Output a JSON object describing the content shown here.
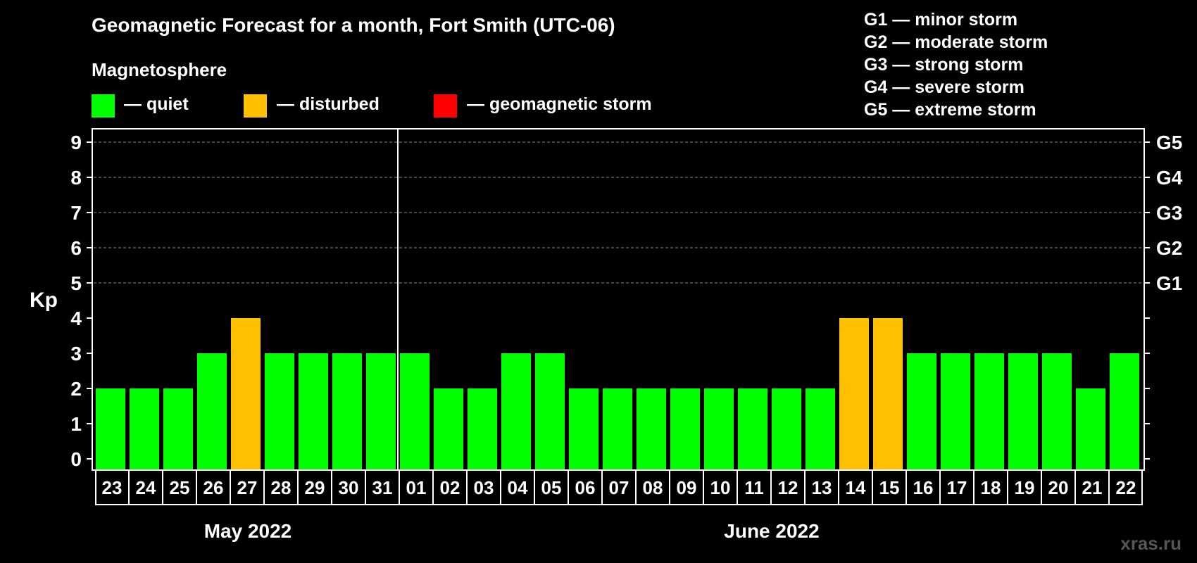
{
  "title": "Geomagnetic Forecast for a month, Fort Smith (UTC-06)",
  "magnetosphere_heading": "Magnetosphere",
  "legend": [
    {
      "label": "— quiet",
      "color": "#00ff00"
    },
    {
      "label": "— disturbed",
      "color": "#ffc000"
    },
    {
      "label": "— geomagnetic storm",
      "color": "#ff0000"
    }
  ],
  "g_scale": [
    "G1 — minor storm",
    "G2 — moderate storm",
    "G3 — strong storm",
    "G4 — severe storm",
    "G5 — extreme storm"
  ],
  "watermark": "xras.ru",
  "chart_data": {
    "type": "bar",
    "ylabel": "Kp",
    "ylim": [
      0,
      9
    ],
    "yticks": [
      0,
      1,
      2,
      3,
      4,
      5,
      6,
      7,
      8,
      9
    ],
    "right_axis_labels": [
      {
        "kp": 5,
        "label": "G1"
      },
      {
        "kp": 6,
        "label": "G2"
      },
      {
        "kp": 7,
        "label": "G3"
      },
      {
        "kp": 8,
        "label": "G4"
      },
      {
        "kp": 9,
        "label": "G5"
      }
    ],
    "grid": "dashed horizontal at Kp 5-9",
    "categories": [
      "23",
      "24",
      "25",
      "26",
      "27",
      "28",
      "29",
      "30",
      "31",
      "01",
      "02",
      "03",
      "04",
      "05",
      "06",
      "07",
      "08",
      "09",
      "10",
      "11",
      "12",
      "13",
      "14",
      "15",
      "16",
      "17",
      "18",
      "19",
      "20",
      "21",
      "22"
    ],
    "values": [
      2,
      2,
      2,
      3,
      4,
      3,
      3,
      3,
      3,
      3,
      2,
      2,
      3,
      3,
      2,
      2,
      2,
      2,
      2,
      2,
      2,
      2,
      4,
      4,
      3,
      3,
      3,
      3,
      3,
      2,
      3
    ],
    "months": [
      {
        "label": "May 2022",
        "start": 0,
        "end": 8
      },
      {
        "label": "June 2022",
        "start": 9,
        "end": 30
      }
    ],
    "colors": {
      "quiet": "#00ff00",
      "disturbed": "#ffc000",
      "storm": "#ff0000"
    }
  }
}
